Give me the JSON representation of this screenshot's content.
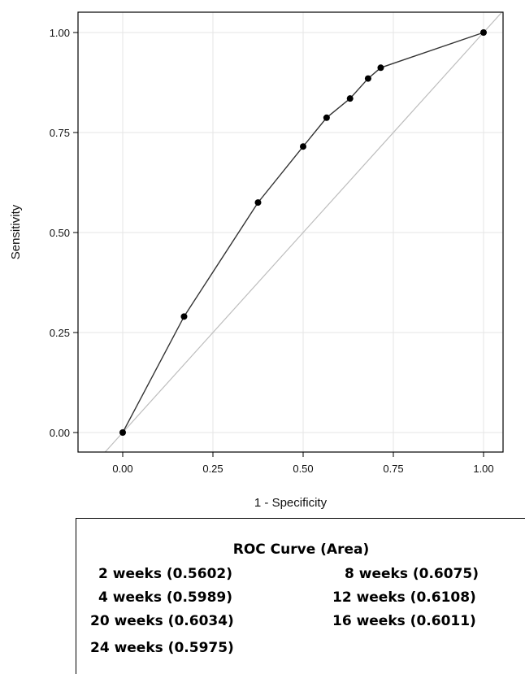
{
  "chart_data": {
    "type": "line",
    "xlabel": "1 - Specificity",
    "ylabel": "Sensitivity",
    "xlim": [
      0,
      1
    ],
    "ylim": [
      0,
      1
    ],
    "xticks": [
      "0.00",
      "0.25",
      "0.50",
      "0.75",
      "1.00"
    ],
    "yticks": [
      "0.00",
      "0.25",
      "0.50",
      "0.75",
      "1.00"
    ],
    "grid": true,
    "series": [
      {
        "x": [
          0.0,
          0.17,
          0.375,
          0.5,
          0.565,
          0.63,
          0.68,
          0.715,
          1.0
        ],
        "y": [
          0.0,
          0.29,
          0.575,
          0.715,
          0.787,
          0.835,
          0.885,
          0.912,
          1.0
        ]
      }
    ],
    "reference_line": {
      "x": [
        -0.05,
        1.05
      ],
      "y": [
        -0.05,
        1.05
      ]
    },
    "colors": {
      "curve": "#333333",
      "points": "#000000",
      "reference": "#bdbdbd",
      "grid": "#e6e6e6"
    }
  },
  "legend": {
    "title": "ROC Curve (Area)",
    "entries": [
      "2 weeks (0.5602)",
      "8 weeks (0.6075)",
      "4 weeks (0.5989)",
      "12 weeks (0.6108)",
      "20 weeks (0.6034)",
      "16 weeks (0.6011)",
      "24 weeks (0.5975)"
    ]
  }
}
